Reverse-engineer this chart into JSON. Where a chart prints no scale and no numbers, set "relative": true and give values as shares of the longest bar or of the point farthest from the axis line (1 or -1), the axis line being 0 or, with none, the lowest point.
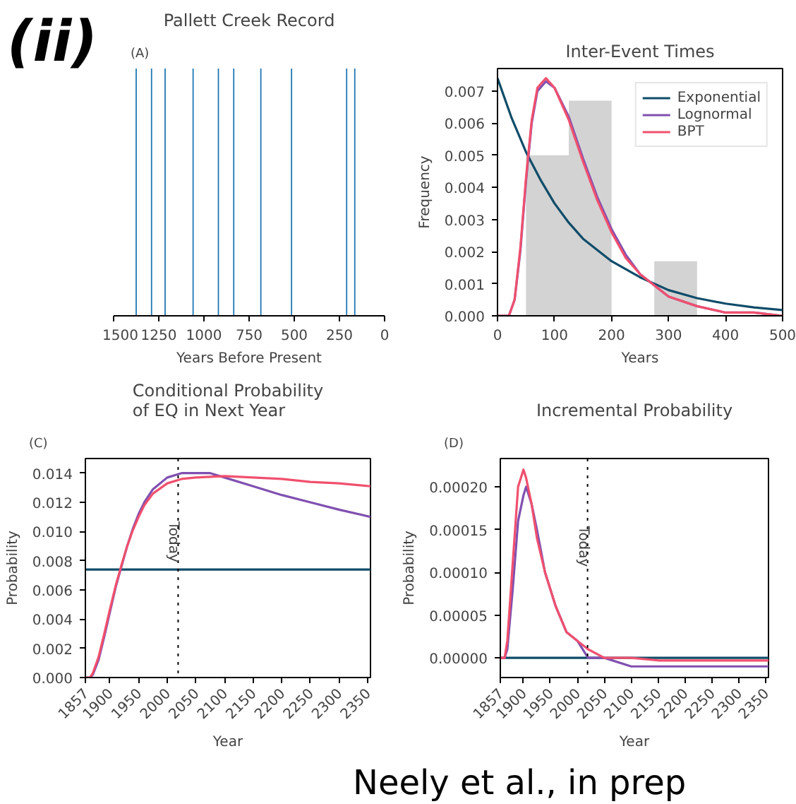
{
  "chart_data": [
    {
      "type": "bar",
      "title": "Pallett Creek Record",
      "xlabel": "Years Before Present",
      "relative": true,
      "color": "#1f77b4",
      "x": [
        1375,
        1290,
        1215,
        1060,
        920,
        835,
        685,
        515,
        210,
        165
      ],
      "values": [
        1,
        1,
        1,
        1,
        1,
        1,
        1,
        1,
        1,
        1
      ],
      "xlim": [
        1500,
        0
      ],
      "xticks": [
        1500,
        1250,
        1000,
        750,
        500,
        250,
        0
      ],
      "grid": false,
      "annotations": [
        "(A)",
        "(ii)"
      ]
    },
    {
      "type": "histogram",
      "title": "Inter-Event Times",
      "xlabel": "Years",
      "ylabel": "Frequency",
      "color": "#d3d3d3",
      "bins": [
        50,
        125,
        200,
        275,
        350
      ],
      "values": [
        0.005,
        0.0067,
        0,
        0.0017
      ],
      "xlim": [
        0,
        500
      ],
      "xticks": [
        0,
        100,
        200,
        300,
        400,
        500
      ],
      "ylim": [
        0,
        0.0077
      ],
      "yticks": [
        {
          "value": 0,
          "label": "0.000"
        },
        {
          "value": 0.001,
          "label": "0.001"
        },
        {
          "value": 0.002,
          "label": "0.002"
        },
        {
          "value": 0.003,
          "label": "0.003"
        },
        {
          "value": 0.004,
          "label": "0.004"
        },
        {
          "value": 0.005,
          "label": "0.005"
        },
        {
          "value": 0.006,
          "label": "0.006"
        },
        {
          "value": 0.007,
          "label": "0.007"
        }
      ],
      "grid": false,
      "legend": "top right",
      "series": [
        {
          "name": "Exponential",
          "type": "line",
          "color": "#0f4c69",
          "x": [
            0,
            25,
            50,
            75,
            100,
            125,
            150,
            200,
            250,
            300,
            350,
            400,
            450,
            500
          ],
          "values": [
            0.0074,
            0.00615,
            0.0051,
            0.00425,
            0.0035,
            0.0029,
            0.0024,
            0.0017,
            0.0012,
            0.0008,
            0.00055,
            0.00038,
            0.00026,
            0.00018
          ]
        },
        {
          "name": "Lognormal",
          "type": "line",
          "color": "#8050b0",
          "x": [
            0,
            20,
            30,
            40,
            50,
            60,
            70,
            85,
            100,
            125,
            150,
            175,
            200,
            225,
            250,
            300,
            350,
            400,
            450,
            500
          ],
          "values": [
            0,
            0,
            0.0005,
            0.002,
            0.0042,
            0.006,
            0.007,
            0.0073,
            0.0071,
            0.0062,
            0.0049,
            0.0037,
            0.0027,
            0.0019,
            0.0013,
            0.0006,
            0.0003,
            0.0001,
            0.0001,
            0
          ]
        },
        {
          "name": "BPT",
          "type": "line",
          "color": "#f0506e",
          "x": [
            0,
            20,
            30,
            40,
            50,
            60,
            70,
            85,
            100,
            125,
            150,
            175,
            200,
            225,
            250,
            300,
            350,
            400,
            450,
            500
          ],
          "values": [
            0,
            0,
            0.0005,
            0.0021,
            0.0043,
            0.0061,
            0.0071,
            0.0074,
            0.0071,
            0.0061,
            0.0048,
            0.0036,
            0.0026,
            0.0018,
            0.0013,
            0.0006,
            0.0003,
            0.0001,
            0.0001,
            0
          ]
        }
      ]
    },
    {
      "type": "line",
      "title": "Conditional Probability\nof EQ in Next Year",
      "xlabel": "Year",
      "ylabel": "Probability",
      "xlim": [
        1857,
        2355
      ],
      "xticks": [
        1857,
        1900,
        1950,
        2000,
        2050,
        2100,
        2150,
        2200,
        2250,
        2300,
        2350
      ],
      "ylim": [
        0,
        0.015
      ],
      "yticks": [
        {
          "value": 0,
          "label": "0.000"
        },
        {
          "value": 0.002,
          "label": "0.002"
        },
        {
          "value": 0.004,
          "label": "0.004"
        },
        {
          "value": 0.006,
          "label": "0.006"
        },
        {
          "value": 0.008,
          "label": "0.008"
        },
        {
          "value": 0.01,
          "label": "0.010"
        },
        {
          "value": 0.012,
          "label": "0.012"
        },
        {
          "value": 0.014,
          "label": "0.014"
        }
      ],
      "grid": false,
      "ref_lines": [
        {
          "axis": "x",
          "value": 2019,
          "label": "Today",
          "color": "#000000",
          "line_style": "dotted"
        }
      ],
      "series": [
        {
          "color": "#0f4c69",
          "x": [
            1857,
            2355
          ],
          "values": [
            0.0074,
            0.0074
          ]
        },
        {
          "color": "#8050b0",
          "x": [
            1857,
            1865,
            1870,
            1880,
            1890,
            1900,
            1910,
            1920,
            1930,
            1940,
            1950,
            1960,
            1975,
            2000,
            2025,
            2050,
            2075,
            2100,
            2150,
            2200,
            2250,
            2300,
            2355
          ],
          "values": [
            0,
            0,
            0.0002,
            0.0012,
            0.0028,
            0.0045,
            0.0062,
            0.0076,
            0.009,
            0.0102,
            0.0112,
            0.012,
            0.0129,
            0.0137,
            0.014,
            0.014,
            0.014,
            0.0137,
            0.0131,
            0.0125,
            0.012,
            0.0115,
            0.011
          ]
        },
        {
          "color": "#f0506e",
          "x": [
            1857,
            1865,
            1870,
            1880,
            1890,
            1900,
            1910,
            1920,
            1930,
            1940,
            1950,
            1960,
            1975,
            2000,
            2025,
            2050,
            2100,
            2150,
            2200,
            2250,
            2300,
            2355
          ],
          "values": [
            0,
            0,
            0.0003,
            0.0014,
            0.003,
            0.0047,
            0.0063,
            0.0077,
            0.009,
            0.0101,
            0.011,
            0.0118,
            0.0126,
            0.0133,
            0.0136,
            0.0137,
            0.0138,
            0.0137,
            0.0136,
            0.0134,
            0.0133,
            0.0131
          ]
        }
      ],
      "annotations": [
        "(C)"
      ]
    },
    {
      "type": "line",
      "title": "Incremental Probability",
      "xlabel": "Year",
      "ylabel": "Probability",
      "xlim": [
        1857,
        2355
      ],
      "xticks": [
        1857,
        1900,
        1950,
        2000,
        2050,
        2100,
        2150,
        2200,
        2250,
        2300,
        2350
      ],
      "ylim": [
        -2.3e-05,
        0.000233
      ],
      "yticks": [
        {
          "value": 0,
          "label": "0.00000"
        },
        {
          "value": 5e-05,
          "label": "0.00005"
        },
        {
          "value": 0.0001,
          "label": "0.00010"
        },
        {
          "value": 0.00015,
          "label": "0.00015"
        },
        {
          "value": 0.0002,
          "label": "0.00020"
        }
      ],
      "grid": false,
      "ref_lines": [
        {
          "axis": "x",
          "value": 2019,
          "label": "Today",
          "color": "#000000",
          "line_style": "dotted"
        }
      ],
      "series": [
        {
          "color": "#0f4c69",
          "x": [
            1857,
            2355
          ],
          "values": [
            0,
            0
          ]
        },
        {
          "color": "#8050b0",
          "x": [
            1857,
            1865,
            1870,
            1880,
            1890,
            1900,
            1905,
            1915,
            1925,
            1940,
            1960,
            1980,
            2000,
            2020,
            2050,
            2100,
            2150,
            2200,
            2250,
            2300,
            2355
          ],
          "values": [
            0,
            0,
            1e-05,
            8e-05,
            0.00016,
            0.00019,
            0.0002,
            0.00018,
            0.00015,
            0.0001,
            6e-05,
            3e-05,
            2e-05,
            0,
            0,
            -1e-05,
            -1e-05,
            -1e-05,
            -1e-05,
            -1e-05,
            -1e-05
          ]
        },
        {
          "color": "#f0506e",
          "x": [
            1857,
            1865,
            1870,
            1880,
            1890,
            1900,
            1905,
            1915,
            1925,
            1940,
            1960,
            1980,
            2000,
            2020,
            2050,
            2100,
            2150,
            2200,
            2250,
            2300,
            2355
          ],
          "values": [
            0,
            0,
            2e-05,
            0.00011,
            0.0002,
            0.00022,
            0.00021,
            0.00018,
            0.00014,
            0.0001,
            6e-05,
            3e-05,
            2e-05,
            1e-05,
            0,
            0,
            -3e-06,
            -3e-06,
            -3e-06,
            -3e-06,
            -3e-06
          ]
        }
      ],
      "annotations": [
        "(D)",
        "Neely et al., in prep"
      ]
    }
  ]
}
